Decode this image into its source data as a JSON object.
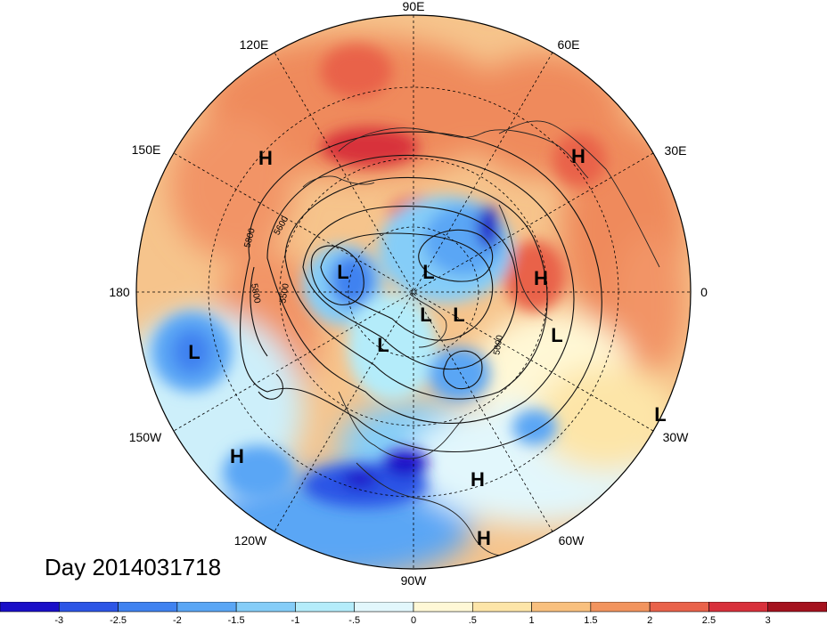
{
  "map": {
    "longitude_labels": {
      "e90": "90E",
      "e60": "60E",
      "e30": "30E",
      "zero": "0",
      "w30": "30W",
      "w60": "60W",
      "w90": "90W",
      "w120": "120W",
      "w150": "150W",
      "d180": "180",
      "e150": "150E",
      "e120": "120E"
    },
    "contour_labels": [
      "5800",
      "5600",
      "5500",
      "5800",
      "5600"
    ],
    "pressure_centers": [
      {
        "type": "H",
        "label": "H"
      },
      {
        "type": "H",
        "label": "H"
      },
      {
        "type": "H",
        "label": "H"
      },
      {
        "type": "H",
        "label": "H"
      },
      {
        "type": "H",
        "label": "H"
      },
      {
        "type": "H",
        "label": "H"
      },
      {
        "type": "L",
        "label": "L"
      },
      {
        "type": "L",
        "label": "L"
      },
      {
        "type": "L",
        "label": "L"
      },
      {
        "type": "L",
        "label": "L"
      },
      {
        "type": "L",
        "label": "L"
      },
      {
        "type": "L",
        "label": "L"
      },
      {
        "type": "L",
        "label": "L"
      },
      {
        "type": "L",
        "label": "L"
      }
    ],
    "date_label": "Day 2014031718"
  },
  "colorbar": {
    "colors": [
      "#1a0fc8",
      "#2c55e6",
      "#3f82f0",
      "#5aa6f5",
      "#85cdf8",
      "#b4ecfa",
      "#e2f7fc",
      "#fff8d6",
      "#fde5a8",
      "#f9c07e",
      "#f2945e",
      "#e9624a",
      "#d8303b",
      "#a5121e"
    ],
    "tick_labels": [
      "-3",
      "-2.5",
      "-2",
      "-1.5",
      "-1",
      "-.5",
      "0",
      ".5",
      "1",
      "1.5",
      "2",
      "2.5",
      "3"
    ]
  }
}
